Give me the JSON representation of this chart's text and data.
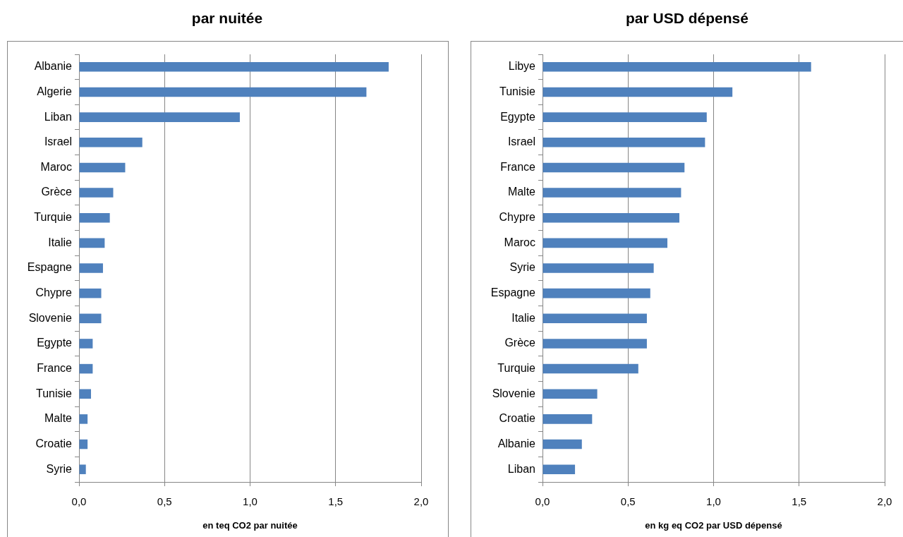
{
  "chart_data": [
    {
      "type": "bar",
      "orientation": "horizontal",
      "title": "par nuitée",
      "xlabel": "en teq CO2 par nuitée",
      "categories": [
        "Albanie",
        "Algerie",
        "Liban",
        "Israel",
        "Maroc",
        "Grèce",
        "Turquie",
        "Italie",
        "Espagne",
        "Chypre",
        "Slovenie",
        "Egypte",
        "France",
        "Tunisie",
        "Malte",
        "Croatie",
        "Syrie"
      ],
      "values": [
        1.81,
        1.68,
        0.94,
        0.37,
        0.27,
        0.2,
        0.18,
        0.15,
        0.14,
        0.13,
        0.13,
        0.08,
        0.08,
        0.07,
        0.05,
        0.05,
        0.04
      ],
      "color": "#4f81bd",
      "xlim": [
        0,
        2
      ],
      "xticks": [
        {
          "value": 0,
          "label": "0,0"
        },
        {
          "value": 0.5,
          "label": "0,5"
        },
        {
          "value": 1,
          "label": "1,0"
        },
        {
          "value": 1.5,
          "label": "1,5"
        },
        {
          "value": 2,
          "label": "2,0"
        }
      ],
      "grid": "x"
    },
    {
      "type": "bar",
      "orientation": "horizontal",
      "title": "par USD dépensé",
      "xlabel": "en kg eq CO2 par USD dépensé",
      "categories": [
        "Libye",
        "Tunisie",
        "Egypte",
        "Israel",
        "France",
        "Malte",
        "Chypre",
        "Maroc",
        "Syrie",
        "Espagne",
        "Italie",
        "Grèce",
        "Turquie",
        "Slovenie",
        "Croatie",
        "Albanie",
        "Liban"
      ],
      "values": [
        1.57,
        1.11,
        0.96,
        0.95,
        0.83,
        0.81,
        0.8,
        0.73,
        0.65,
        0.63,
        0.61,
        0.61,
        0.56,
        0.32,
        0.29,
        0.23,
        0.19
      ],
      "color": "#4f81bd",
      "xlim": [
        0,
        2
      ],
      "xticks": [
        {
          "value": 0,
          "label": "0,0"
        },
        {
          "value": 0.5,
          "label": "0,5"
        },
        {
          "value": 1,
          "label": "1,0"
        },
        {
          "value": 1.5,
          "label": "1,5"
        },
        {
          "value": 2,
          "label": "2,0"
        }
      ],
      "grid": "x"
    }
  ]
}
